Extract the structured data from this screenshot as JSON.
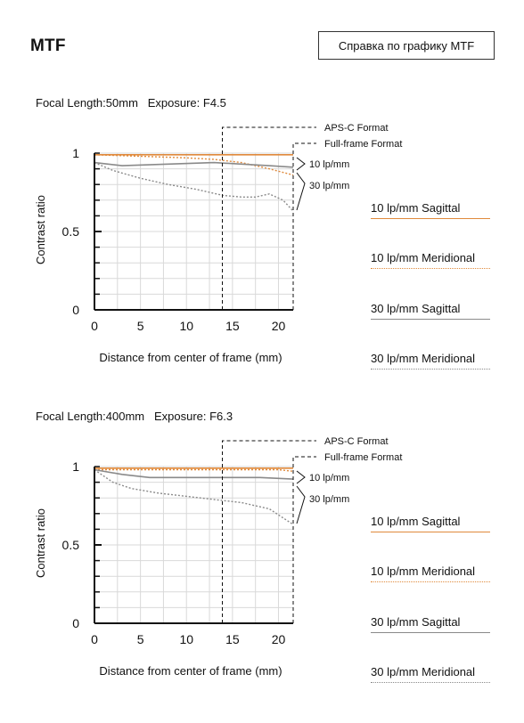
{
  "page": {
    "title": "MTF",
    "help_button": "Справка по графику MTF"
  },
  "charts": [
    {
      "heading": "Focal Length:50mm   Exposure: F4.5",
      "format_labels": {
        "apsc": "APS-C Format",
        "fullframe": "Full-frame Format"
      },
      "freq_labels": {
        "low": "10 lp/mm",
        "high": "30 lp/mm"
      }
    },
    {
      "heading": "Focal Length:400mm   Exposure: F6.3",
      "format_labels": {
        "apsc": "APS-C Format",
        "fullframe": "Full-frame Format"
      },
      "freq_labels": {
        "low": "10 lp/mm",
        "high": "30 lp/mm"
      }
    }
  ],
  "legend": [
    {
      "label": "10 lp/mm Sagittal",
      "color": "#e08a3c",
      "style": "solid"
    },
    {
      "label": "10 lp/mm Meridional",
      "color": "#e08a3c",
      "style": "dotted"
    },
    {
      "label": "30 lp/mm Sagittal",
      "color": "#8a8a8a",
      "style": "solid"
    },
    {
      "label": "30 lp/mm Meridional",
      "color": "#8a8a8a",
      "style": "dotted"
    }
  ],
  "chart_data": [
    {
      "type": "line",
      "title": "Focal Length:50mm   Exposure: F4.5",
      "xlabel": "Distance from center of frame (mm)",
      "ylabel": "Contrast ratio",
      "xlim": [
        0,
        21.6
      ],
      "ylim": [
        0,
        1
      ],
      "xticks": [
        "0",
        "5",
        "10",
        "15",
        "20"
      ],
      "yticks": [
        "0",
        "0.5",
        "1"
      ],
      "markers": {
        "apsc_mm": 13.9,
        "fullframe_mm": 21.6
      },
      "grid": true,
      "series": [
        {
          "name": "10 lp/mm Sagittal",
          "color": "#e08a3c",
          "style": "solid",
          "x": [
            0,
            5,
            10,
            15,
            20,
            21.6
          ],
          "y": [
            0.99,
            0.99,
            0.99,
            0.99,
            0.99,
            0.99
          ]
        },
        {
          "name": "10 lp/mm Meridional",
          "color": "#e08a3c",
          "style": "dotted",
          "x": [
            0,
            5,
            10,
            13,
            16,
            19,
            21.6
          ],
          "y": [
            0.99,
            0.98,
            0.97,
            0.96,
            0.94,
            0.9,
            0.86
          ]
        },
        {
          "name": "30 lp/mm Sagittal",
          "color": "#8a8a8a",
          "style": "solid",
          "x": [
            0,
            3,
            8,
            13,
            16,
            19,
            21.6
          ],
          "y": [
            0.94,
            0.92,
            0.93,
            0.94,
            0.93,
            0.92,
            0.91
          ]
        },
        {
          "name": "30 lp/mm Meridional",
          "color": "#8a8a8a",
          "style": "dotted",
          "x": [
            0,
            2,
            5,
            8,
            11,
            14,
            16,
            17.5,
            19,
            20.5,
            21.6
          ],
          "y": [
            0.94,
            0.89,
            0.84,
            0.8,
            0.77,
            0.73,
            0.72,
            0.72,
            0.74,
            0.7,
            0.63
          ]
        }
      ]
    },
    {
      "type": "line",
      "title": "Focal Length:400mm   Exposure: F6.3",
      "xlabel": "Distance from center of frame (mm)",
      "ylabel": "Contrast ratio",
      "xlim": [
        0,
        21.6
      ],
      "ylim": [
        0,
        1
      ],
      "xticks": [
        "0",
        "5",
        "10",
        "15",
        "20"
      ],
      "yticks": [
        "0",
        "0.5",
        "1"
      ],
      "markers": {
        "apsc_mm": 13.9,
        "fullframe_mm": 21.6
      },
      "grid": true,
      "series": [
        {
          "name": "10 lp/mm Sagittal",
          "color": "#e08a3c",
          "style": "solid",
          "x": [
            0,
            5,
            10,
            15,
            20,
            21.6
          ],
          "y": [
            0.99,
            0.99,
            0.99,
            0.99,
            0.99,
            0.99
          ]
        },
        {
          "name": "10 lp/mm Meridional",
          "color": "#e08a3c",
          "style": "dotted",
          "x": [
            0,
            5,
            10,
            15,
            20,
            21.6
          ],
          "y": [
            0.98,
            0.98,
            0.98,
            0.98,
            0.98,
            0.97
          ]
        },
        {
          "name": "30 lp/mm Sagittal",
          "color": "#8a8a8a",
          "style": "solid",
          "x": [
            0,
            3,
            6,
            10,
            14,
            18,
            21.6
          ],
          "y": [
            0.98,
            0.95,
            0.93,
            0.93,
            0.93,
            0.93,
            0.92
          ]
        },
        {
          "name": "30 lp/mm Meridional",
          "color": "#8a8a8a",
          "style": "dotted",
          "x": [
            0,
            2,
            4,
            7,
            10,
            13,
            16,
            19,
            21.6
          ],
          "y": [
            0.98,
            0.9,
            0.86,
            0.83,
            0.81,
            0.79,
            0.77,
            0.73,
            0.63
          ]
        }
      ]
    }
  ]
}
